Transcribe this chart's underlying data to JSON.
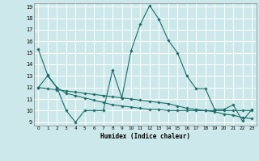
{
  "xlabel": "Humidex (Indice chaleur)",
  "xlim": [
    -0.5,
    23.5
  ],
  "ylim": [
    8.7,
    19.3
  ],
  "yticks": [
    9,
    10,
    11,
    12,
    13,
    14,
    15,
    16,
    17,
    18,
    19
  ],
  "xticks": [
    0,
    1,
    2,
    3,
    4,
    5,
    6,
    7,
    8,
    9,
    10,
    11,
    12,
    13,
    14,
    15,
    16,
    17,
    18,
    19,
    20,
    21,
    22,
    23
  ],
  "bg_color": "#cde8ea",
  "grid_color": "#b0d8dc",
  "line_color": "#1a6e6a",
  "line1_x": [
    0,
    1,
    2,
    3,
    4,
    5,
    6,
    7,
    8,
    9,
    10,
    11,
    12,
    13,
    14,
    15,
    16,
    17,
    18,
    19,
    20,
    21,
    22,
    23
  ],
  "line1_y": [
    15.3,
    13.1,
    12.0,
    10.0,
    9.0,
    10.0,
    10.0,
    10.0,
    13.5,
    11.1,
    15.2,
    17.5,
    19.1,
    17.9,
    16.1,
    15.0,
    13.0,
    11.9,
    11.9,
    10.1,
    10.1,
    10.5,
    9.1,
    10.1
  ],
  "line2_x": [
    0,
    1,
    2,
    3,
    4,
    5,
    6,
    7,
    8,
    9,
    10,
    11,
    12,
    13,
    14,
    15,
    16,
    17,
    18,
    19,
    20,
    21,
    22,
    23
  ],
  "line2_y": [
    12.0,
    11.9,
    11.8,
    11.7,
    11.6,
    11.5,
    11.4,
    11.3,
    11.2,
    11.1,
    11.0,
    10.9,
    10.8,
    10.7,
    10.6,
    10.4,
    10.2,
    10.1,
    10.0,
    9.9,
    9.7,
    9.6,
    9.4,
    9.3
  ],
  "line3_x": [
    0,
    1,
    2,
    3,
    4,
    5,
    6,
    7,
    8,
    9,
    10,
    11,
    12,
    13,
    14,
    15,
    16,
    17,
    18,
    19,
    20,
    21,
    22,
    23
  ],
  "line3_y": [
    12.0,
    13.0,
    12.0,
    11.5,
    11.3,
    11.1,
    10.9,
    10.7,
    10.5,
    10.4,
    10.3,
    10.2,
    10.1,
    10.1,
    10.0,
    10.0,
    10.0,
    10.0,
    10.0,
    10.0,
    10.0,
    10.0,
    10.0,
    10.0
  ]
}
